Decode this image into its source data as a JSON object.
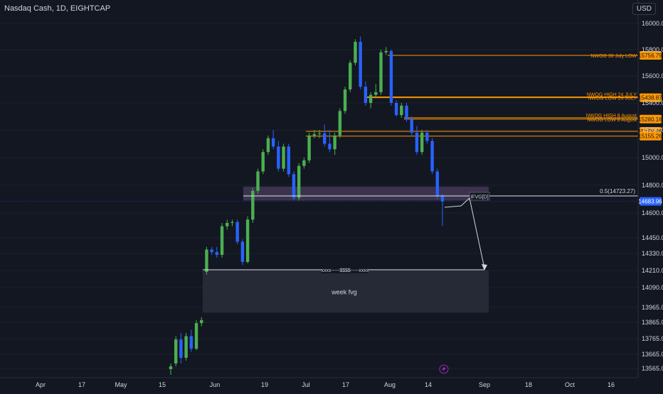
{
  "header": {
    "title": "Nasdaq Cash, 1D, EIGHTCAP",
    "currency": "USD"
  },
  "chart_data": {
    "type": "candlestick",
    "y_axis_ticks": [
      16000,
      15800,
      15600,
      15400,
      15200,
      15000,
      14800,
      14600,
      14450,
      14330,
      14210,
      14090,
      13965,
      13865,
      13765,
      13665,
      13565
    ],
    "x_axis_labels": [
      "Apr",
      "17",
      "May",
      "15",
      "Jun",
      "19",
      "Jul",
      "17",
      "Aug",
      "14",
      "Sep",
      "18",
      "Oct",
      "16"
    ],
    "candles": [
      {
        "o": 13560,
        "h": 13600,
        "l": 13520,
        "c": 13580
      },
      {
        "o": 13600,
        "h": 13780,
        "l": 13580,
        "c": 13760
      },
      {
        "o": 13760,
        "h": 13800,
        "l": 13600,
        "c": 13640
      },
      {
        "o": 13640,
        "h": 13800,
        "l": 13620,
        "c": 13780
      },
      {
        "o": 13780,
        "h": 13820,
        "l": 13680,
        "c": 13700
      },
      {
        "o": 13700,
        "h": 13880,
        "l": 13690,
        "c": 13860
      },
      {
        "o": 13860,
        "h": 13900,
        "l": 13840,
        "c": 13880
      },
      {
        "o": 14200,
        "h": 14380,
        "l": 14180,
        "c": 14360
      },
      {
        "o": 14360,
        "h": 14380,
        "l": 14320,
        "c": 14340
      },
      {
        "o": 14340,
        "h": 14380,
        "l": 14300,
        "c": 14320
      },
      {
        "o": 14320,
        "h": 14540,
        "l": 14300,
        "c": 14520
      },
      {
        "o": 14520,
        "h": 14560,
        "l": 14500,
        "c": 14540
      },
      {
        "o": 14540,
        "h": 14560,
        "l": 14520,
        "c": 14545
      },
      {
        "o": 14545,
        "h": 14560,
        "l": 14400,
        "c": 14420
      },
      {
        "o": 14420,
        "h": 14440,
        "l": 14250,
        "c": 14270
      },
      {
        "o": 14270,
        "h": 14580,
        "l": 14260,
        "c": 14560
      },
      {
        "o": 14560,
        "h": 14780,
        "l": 14540,
        "c": 14760
      },
      {
        "o": 14760,
        "h": 14920,
        "l": 14740,
        "c": 14900
      },
      {
        "o": 14900,
        "h": 15060,
        "l": 14880,
        "c": 15040
      },
      {
        "o": 15040,
        "h": 15160,
        "l": 15020,
        "c": 15140
      },
      {
        "o": 15140,
        "h": 15200,
        "l": 15060,
        "c": 15080
      },
      {
        "o": 15080,
        "h": 15120,
        "l": 14900,
        "c": 14920
      },
      {
        "o": 14920,
        "h": 15100,
        "l": 14900,
        "c": 15080
      },
      {
        "o": 15080,
        "h": 15100,
        "l": 14860,
        "c": 14880
      },
      {
        "o": 14880,
        "h": 14900,
        "l": 14690,
        "c": 14710
      },
      {
        "o": 14710,
        "h": 14960,
        "l": 14690,
        "c": 14940
      },
      {
        "o": 14940,
        "h": 15000,
        "l": 14920,
        "c": 14980
      },
      {
        "o": 14980,
        "h": 15180,
        "l": 14960,
        "c": 15160
      },
      {
        "o": 15160,
        "h": 15200,
        "l": 15140,
        "c": 15170
      },
      {
        "o": 15170,
        "h": 15200,
        "l": 15140,
        "c": 15175
      },
      {
        "o": 15175,
        "h": 15240,
        "l": 15080,
        "c": 15100
      },
      {
        "o": 15100,
        "h": 15200,
        "l": 15040,
        "c": 15060
      },
      {
        "o": 15060,
        "h": 15180,
        "l": 15020,
        "c": 15160
      },
      {
        "o": 15160,
        "h": 15360,
        "l": 15140,
        "c": 15340
      },
      {
        "o": 15340,
        "h": 15520,
        "l": 15320,
        "c": 15500
      },
      {
        "o": 15500,
        "h": 15720,
        "l": 15480,
        "c": 15700
      },
      {
        "o": 15700,
        "h": 15880,
        "l": 15680,
        "c": 15860
      },
      {
        "o": 15860,
        "h": 15900,
        "l": 15500,
        "c": 15520
      },
      {
        "o": 15520,
        "h": 15560,
        "l": 15380,
        "c": 15400
      },
      {
        "o": 15400,
        "h": 15480,
        "l": 15360,
        "c": 15460
      },
      {
        "o": 15460,
        "h": 15540,
        "l": 15440,
        "c": 15480
      },
      {
        "o": 15480,
        "h": 15800,
        "l": 15460,
        "c": 15780
      },
      {
        "o": 15780,
        "h": 15820,
        "l": 15760,
        "c": 15790
      },
      {
        "o": 15790,
        "h": 15800,
        "l": 15380,
        "c": 15400
      },
      {
        "o": 15400,
        "h": 15420,
        "l": 15300,
        "c": 15310
      },
      {
        "o": 15310,
        "h": 15400,
        "l": 15290,
        "c": 15380
      },
      {
        "o": 15380,
        "h": 15400,
        "l": 15260,
        "c": 15280
      },
      {
        "o": 15280,
        "h": 15300,
        "l": 15160,
        "c": 15180
      },
      {
        "o": 15180,
        "h": 15230,
        "l": 15020,
        "c": 15040
      },
      {
        "o": 15040,
        "h": 15200,
        "l": 15020,
        "c": 15180
      },
      {
        "o": 15180,
        "h": 15200,
        "l": 15100,
        "c": 15120
      },
      {
        "o": 15120,
        "h": 15140,
        "l": 14880,
        "c": 14900
      },
      {
        "o": 14900,
        "h": 14920,
        "l": 14700,
        "c": 14720
      },
      {
        "o": 14720,
        "h": 14740,
        "l": 14520,
        "c": 14683.96
      }
    ],
    "horizontal_levels": [
      {
        "label": "NWOG 30 July LOW",
        "price_label": "15756.79",
        "value": 15756.79
      },
      {
        "label": "NWOG HIGH 24 JULY",
        "price_label": "",
        "value": 15445
      },
      {
        "label": "NWOG LOW 24 JULY",
        "price_label": "15438.87",
        "value": 15438.87
      },
      {
        "label": "NWOG HIGH 8 August",
        "price_label": "",
        "value": 15290
      },
      {
        "label": "NWOG LOW 8 August",
        "price_label": "15280.16",
        "value": 15280.16
      },
      {
        "label": "",
        "price_label": "15189.86",
        "value": 15189.86
      },
      {
        "label": "",
        "price_label": "15155.26",
        "value": 15155.26
      }
    ],
    "fib_level": {
      "label": "0.5(14723.27)",
      "value": 14723.27
    },
    "current_price": "14683.96",
    "ifvg_label": "IFVG[D]",
    "ifvg_zone": [
      14690,
      14790
    ],
    "liquidity_label": "xxxx-----$$$$-----xxxx",
    "liquidity_level": 14215,
    "week_fvg_label": "week fvg",
    "week_fvg_zone": [
      13930,
      14210
    ],
    "colors": {
      "bg": "#131722",
      "up": "#4caf50",
      "down": "#2962ff",
      "level": "#ff9800",
      "text": "#d1d4dc",
      "price_tag": "#2962ff"
    }
  }
}
